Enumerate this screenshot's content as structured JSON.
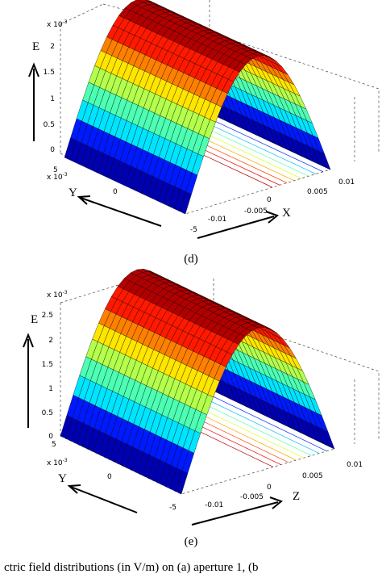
{
  "panels": [
    {
      "label": "(d)",
      "vertical_axis": {
        "title": "E",
        "exponent_base": "x 10",
        "exponent_power": "-3",
        "ticks": [
          "2",
          "1.5",
          "1",
          "0.5",
          "0"
        ]
      },
      "depth_axis": {
        "title": "Y",
        "exponent_base": "x 10",
        "exponent_power": "-3",
        "ticks": [
          "5",
          "0",
          "-5"
        ]
      },
      "horizontal_axis": {
        "title": "X",
        "ticks": [
          "-0.01",
          "-0.005",
          "0",
          "0.005",
          "0.01"
        ]
      }
    },
    {
      "label": "(e)",
      "vertical_axis": {
        "title": "E",
        "exponent_base": "x 10",
        "exponent_power": "-3",
        "ticks": [
          "2.5",
          "2",
          "1.5",
          "1",
          "0.5",
          "0"
        ]
      },
      "depth_axis": {
        "title": "Y",
        "exponent_base": "x 10",
        "exponent_power": "-3",
        "ticks": [
          "5",
          "0",
          "-5"
        ]
      },
      "horizontal_axis": {
        "title": "Z",
        "ticks": [
          "-0.01",
          "-0.005",
          "0",
          "0.005",
          "0.01"
        ]
      }
    }
  ],
  "caption": "ctric field distributions (in V/m)   on (a) aperture 1, (b"
}
